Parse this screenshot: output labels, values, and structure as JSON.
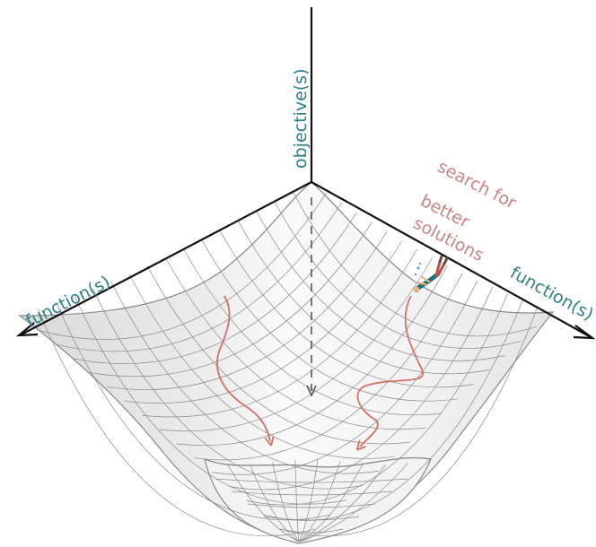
{
  "labels": {
    "vertical_axis": "objective(s)",
    "left_axis": "function(s)",
    "right_axis": "function(s)",
    "search_line_1": "search for",
    "search_line_2": "better",
    "search_line_3": "solutions"
  },
  "icons": {
    "explorer": "diving-person-icon"
  },
  "colors": {
    "axis_label": "#2f7f86",
    "search_label": "#c98582",
    "search_path": "#d66e64",
    "axis_line": "#111111",
    "mesh_line": "#8a8a8a",
    "surface_fill": "#eeeeee",
    "descent_arrow": "#555555"
  }
}
